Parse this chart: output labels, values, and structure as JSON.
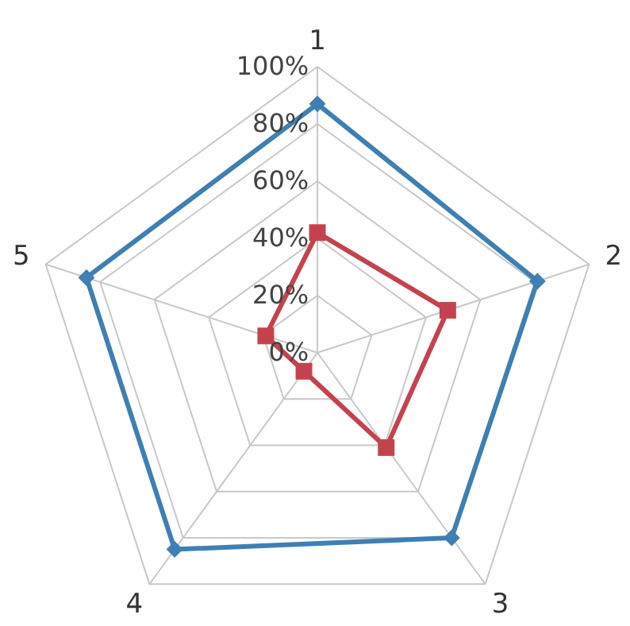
{
  "chart_data": {
    "type": "radar",
    "categories": [
      "1",
      "2",
      "3",
      "4",
      "5"
    ],
    "series": [
      {
        "color": "#3f7fb3",
        "marker": "diamond",
        "values": [
          87,
          81,
          80,
          85,
          85
        ]
      },
      {
        "color": "#c4424e",
        "marker": "square",
        "values": [
          42,
          48,
          41,
          8,
          19
        ]
      }
    ],
    "ylim": [
      0,
      100
    ],
    "yticks": [
      {
        "value": 0,
        "label": "0%"
      },
      {
        "value": 20,
        "label": "20%"
      },
      {
        "value": 40,
        "label": "40%"
      },
      {
        "value": 60,
        "label": "60%"
      },
      {
        "value": 80,
        "label": "80%"
      },
      {
        "value": 100,
        "label": "100%"
      }
    ],
    "grid": true
  }
}
